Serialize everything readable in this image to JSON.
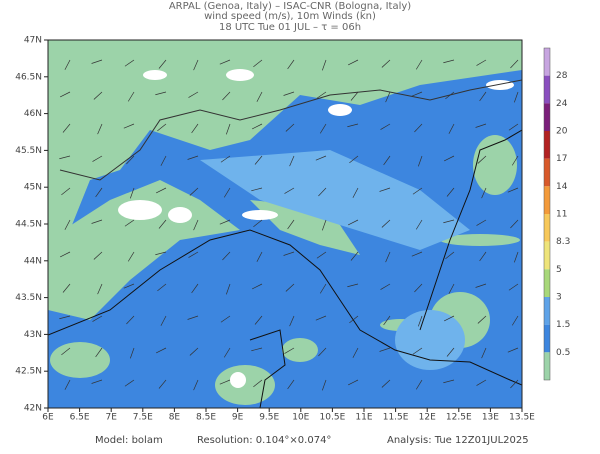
{
  "header": {
    "lines": [
      "ARPAL (Genoa, Italy)  –  ISAC-CNR (Bologna, Italy)",
      "wind speed (m/s), 10m Winds (kn)",
      "18 UTC Tue 01 JUL  –  τ = 06h"
    ]
  },
  "map": {
    "lat_labels": [
      "47N",
      "46.5N",
      "46N",
      "45.5N",
      "45N",
      "44.5N",
      "44N",
      "43.5N",
      "43N",
      "42.5N",
      "42N"
    ],
    "lon_labels": [
      "6E",
      "6.5E",
      "7E",
      "7.5E",
      "8E",
      "8.5E",
      "9E",
      "9.5E",
      "10E",
      "10.5E",
      "11E",
      "11.5E",
      "12E",
      "12.5E",
      "13E",
      "13.5E"
    ]
  },
  "colorbar": {
    "labels": [
      "28",
      "24",
      "20",
      "17",
      "14",
      "11",
      "8.3",
      "5",
      "3",
      "1.5",
      "0.5"
    ]
  },
  "footer": {
    "model": "Model: bolam",
    "resolution": "Resolution: 0.104°×0.074°",
    "analysis": "Analysis: Tue 12Z01JUL2025"
  }
}
